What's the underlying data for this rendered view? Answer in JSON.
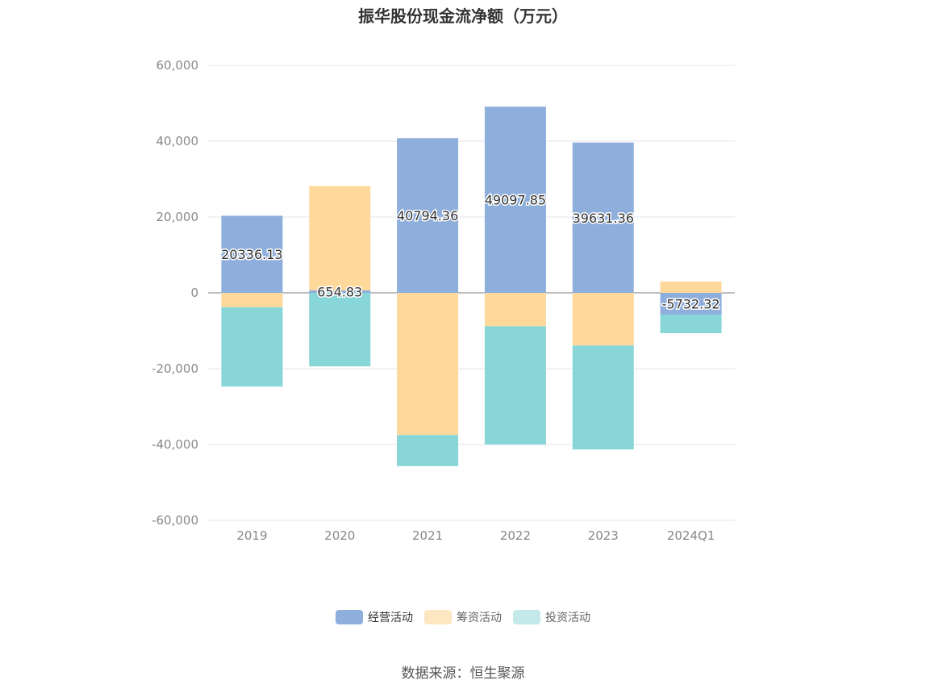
{
  "chart_data": {
    "type": "bar",
    "stacked": true,
    "title": "振华股份现金流净额（万元）",
    "categories": [
      "2019",
      "2020",
      "2021",
      "2022",
      "2023",
      "2024Q1"
    ],
    "series": [
      {
        "name": "经营活动",
        "color": "#8eaedb",
        "values": [
          20336.13,
          654.83,
          40794.36,
          49097.85,
          39631.36,
          -5732.32
        ]
      },
      {
        "name": "筹资活动",
        "color": "#fed99b",
        "values": [
          -3800,
          27500,
          -37500,
          -8800,
          -13900,
          3000
        ]
      },
      {
        "name": "投资活动",
        "color": "#88d6d8",
        "values": [
          -20900,
          -19400,
          -8200,
          -31200,
          -27400,
          -4900
        ]
      }
    ],
    "data_labels": [
      "20336.13",
      "654.83",
      "40794.36",
      "49097.85",
      "39631.36",
      "-5732.32"
    ],
    "yticks": [
      "60,000",
      "40,000",
      "20,000",
      "0",
      "-20,000",
      "-40,000",
      "-60,000"
    ],
    "ylim": [
      -60000,
      60000
    ],
    "grid": true,
    "legend_position": "bottom-center",
    "legend_colors": [
      "#8eaedb",
      "#fde6c2",
      "#c3e9ea"
    ]
  },
  "source_text": "数据来源：恒生聚源"
}
